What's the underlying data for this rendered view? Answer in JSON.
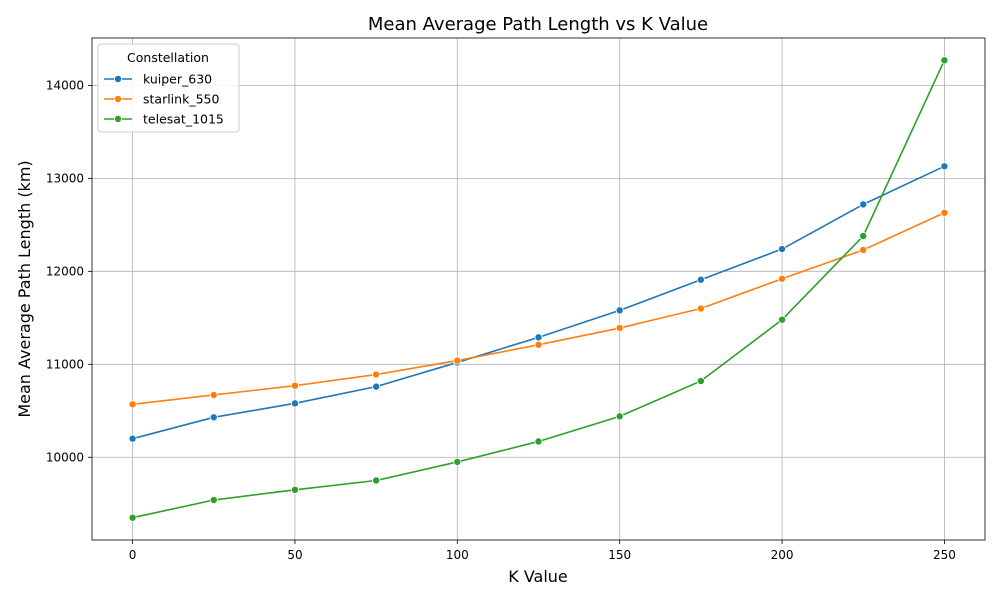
{
  "chart_data": {
    "type": "line",
    "title": "Mean Average Path Length vs K Value",
    "xlabel": "K Value",
    "ylabel": "Mean Average Path Length (km)",
    "x": [
      0,
      25,
      50,
      75,
      100,
      125,
      150,
      175,
      200,
      225,
      250
    ],
    "xlim": [
      -12.5,
      262.5
    ],
    "ylim": [
      9110,
      14510
    ],
    "xticks": [
      0,
      50,
      100,
      150,
      200,
      250
    ],
    "yticks": [
      10000,
      11000,
      12000,
      13000,
      14000
    ],
    "grid": true,
    "legend": {
      "title": "Constellation",
      "placement": "top-left"
    },
    "series": [
      {
        "name": "kuiper_630",
        "color": "#1f77b4",
        "values": [
          10200,
          10430,
          10580,
          10760,
          11020,
          11290,
          11580,
          11910,
          12240,
          12720,
          13130
        ]
      },
      {
        "name": "starlink_550",
        "color": "#ff7f0e",
        "values": [
          10570,
          10670,
          10770,
          10890,
          11040,
          11210,
          11390,
          11600,
          11920,
          12230,
          12630
        ]
      },
      {
        "name": "telesat_1015",
        "color": "#2ca02c",
        "values": [
          9350,
          9540,
          9650,
          9750,
          9950,
          10170,
          10440,
          10820,
          11480,
          12380,
          14270
        ]
      }
    ]
  }
}
